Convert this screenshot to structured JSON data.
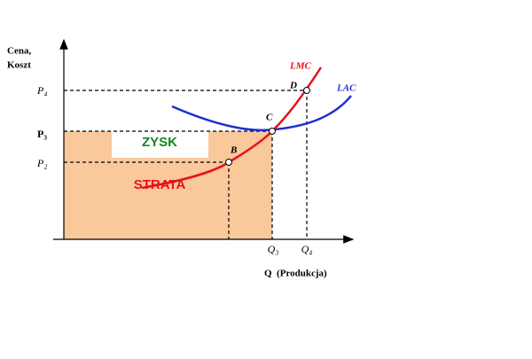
{
  "axes": {
    "y_label_lines": [
      "Cena,",
      "Koszt"
    ],
    "x_label": "Q  (Produkcja)"
  },
  "ticks": {
    "p4": "P₄",
    "p3": "P₃",
    "p2": "P₂",
    "q3": "Q₃",
    "q4": "Q₄"
  },
  "curves": {
    "lmc": "LMC",
    "lac": "LAC"
  },
  "points": {
    "b": "B",
    "c": "C",
    "d": "D"
  },
  "regions": {
    "profit": "ZYSK",
    "loss": "STRATA"
  }
}
